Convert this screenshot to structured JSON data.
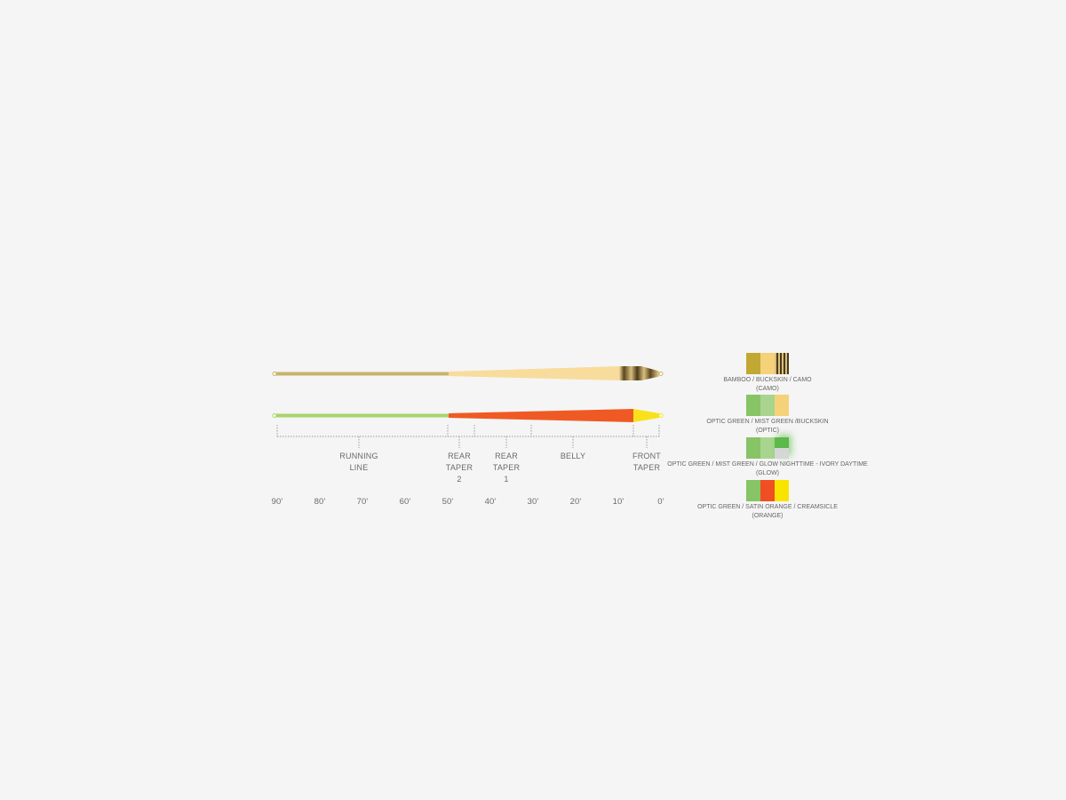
{
  "lines": [
    {
      "name": "camo",
      "running_color": "#c9b46a",
      "head_color": "#f7dc9c",
      "stripe_colors": [
        "#4a3a1a",
        "#d9bf7c"
      ]
    },
    {
      "name": "orange",
      "running_color": "#a9d46a",
      "head_color": "#ef5a24",
      "tip_color": "#f9e21a"
    }
  ],
  "sections": [
    {
      "label_lines": [
        "RUNNING",
        "LINE"
      ]
    },
    {
      "label_lines": [
        "REAR",
        "TAPER",
        "2"
      ]
    },
    {
      "label_lines": [
        "REAR",
        "TAPER",
        "1"
      ]
    },
    {
      "label_lines": [
        "BELLY"
      ]
    },
    {
      "label_lines": [
        "FRONT",
        "TAPER"
      ]
    }
  ],
  "axis_ticks": [
    "90’",
    "80’",
    "70’",
    "60’",
    "50’",
    "40’",
    "30’",
    "20’",
    "10’",
    "0’"
  ],
  "swatches": [
    {
      "colors": [
        "#c1a832",
        "#f5d27a",
        "camo"
      ],
      "label": "BAMBOO / BUCKSKIN / CAMO",
      "sub": "(CAMO)"
    },
    {
      "colors": [
        "#86c466",
        "#a9d48e",
        "#f5d27a"
      ],
      "label": "OPTIC GREEN / MIST GREEN /BUCKSKIN",
      "sub": "(OPTIC)"
    },
    {
      "colors": [
        "#86c466",
        "#a9d48e",
        "glow"
      ],
      "label": "OPTIC GREEN / MIST GREEN / GLOW NIGHTTIME - IVORY DAYTIME",
      "sub": "(GLOW)"
    },
    {
      "colors": [
        "#86c466",
        "#ef4f23",
        "#f9e400"
      ],
      "label": "OPTIC GREEN / SATIN ORANGE / CREAMSICLE",
      "sub": "(ORANGE)"
    }
  ]
}
